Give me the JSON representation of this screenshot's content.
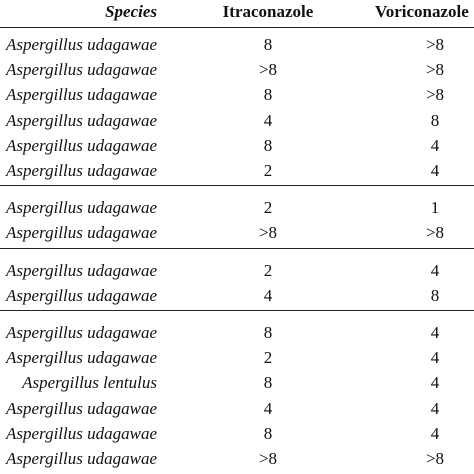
{
  "table": {
    "header": [
      "Species",
      "Itraconazole",
      "Voriconazole"
    ],
    "groups": [
      [
        [
          "Aspergillus udagawae",
          "8",
          ">8"
        ],
        [
          "Aspergillus udagawae",
          ">8",
          ">8"
        ],
        [
          "Aspergillus udagawae",
          "8",
          ">8"
        ],
        [
          "Aspergillus udagawae",
          "4",
          "8"
        ],
        [
          "Aspergillus udagawae",
          "8",
          "4"
        ],
        [
          "Aspergillus udagawae",
          "2",
          "4"
        ]
      ],
      [
        [
          "Aspergillus udagawae",
          "2",
          "1"
        ],
        [
          "Aspergillus udagawae",
          ">8",
          ">8"
        ]
      ],
      [
        [
          "Aspergillus udagawae",
          "2",
          "4"
        ],
        [
          "Aspergillus udagawae",
          "4",
          "8"
        ]
      ],
      [
        [
          "Aspergillus udagawae",
          "8",
          "4"
        ],
        [
          "Aspergillus udagawae",
          "2",
          "4"
        ],
        [
          "Aspergillus lentulus",
          "8",
          "4"
        ],
        [
          "Aspergillus udagawae",
          "4",
          "4"
        ],
        [
          "Aspergillus udagawae",
          "8",
          "4"
        ],
        [
          "Aspergillus udagawae",
          ">8",
          ">8"
        ]
      ]
    ]
  }
}
